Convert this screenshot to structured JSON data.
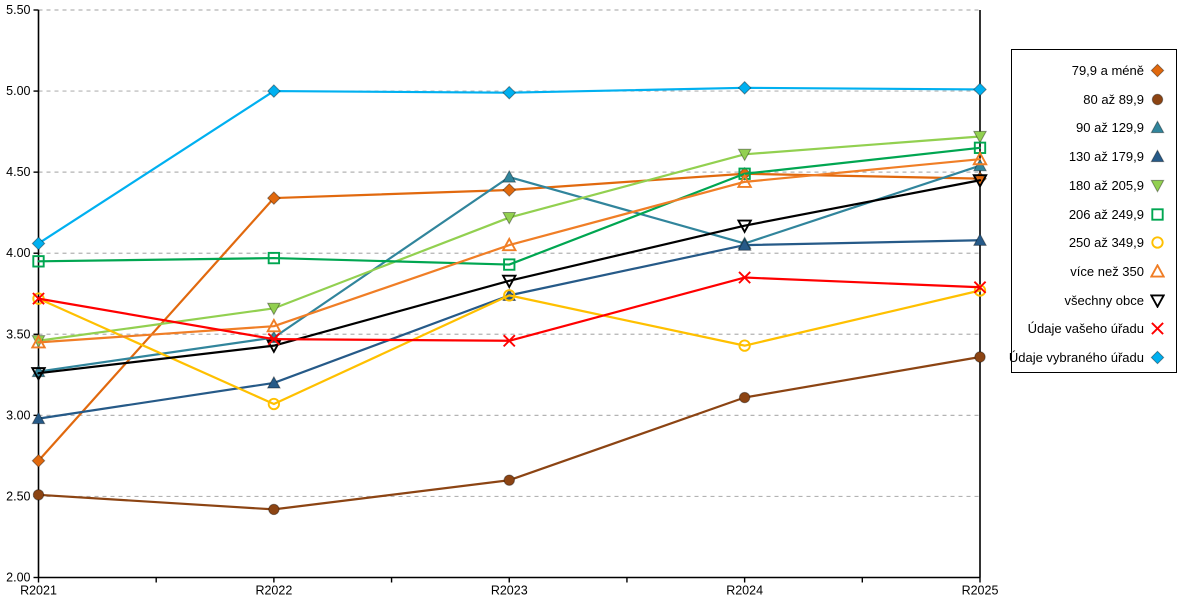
{
  "page": {
    "background": "#FFFFFF",
    "grid_color": "#B3B3B3",
    "axis_color": "#000000"
  },
  "chart_data": {
    "type": "line",
    "title": "",
    "xlabel": "",
    "ylabel": "",
    "categories": [
      "R2021",
      "R2022",
      "R2023",
      "R2024",
      "R2025"
    ],
    "ylim": [
      2.0,
      5.5
    ],
    "ytick_step": 0.5,
    "ytick_labels": [
      "2.00",
      "2.50",
      "3.00",
      "3.50",
      "4.00",
      "4.50",
      "5.00",
      "5.50"
    ],
    "grid": "horizontal-dashed",
    "x_minor_ticks_between_labels": true,
    "legend_position": "right",
    "series": [
      {
        "name": "79,9 a méně",
        "marker": "diamond",
        "filled": true,
        "color": "#E1690E",
        "values": [
          2.72,
          4.34,
          4.39,
          4.49,
          4.46
        ]
      },
      {
        "name": "80 až 89,9",
        "marker": "circle",
        "filled": true,
        "color": "#8C4413",
        "values": [
          2.51,
          2.42,
          2.6,
          3.11,
          3.36
        ]
      },
      {
        "name": "90 až 129,9",
        "marker": "triangle-up",
        "filled": true,
        "color": "#31859C",
        "values": [
          3.27,
          3.48,
          4.47,
          4.06,
          4.54
        ]
      },
      {
        "name": "130 až 179,9",
        "marker": "triangle-up",
        "filled": true,
        "color": "#265A88",
        "values": [
          2.98,
          3.2,
          3.74,
          4.05,
          4.08
        ]
      },
      {
        "name": "180 až 205,9",
        "marker": "triangle-down",
        "filled": true,
        "color": "#92D050",
        "values": [
          3.46,
          3.66,
          4.22,
          4.61,
          4.72
        ]
      },
      {
        "name": "206 až 249,9",
        "marker": "square",
        "filled": false,
        "color": "#00A651",
        "values": [
          3.95,
          3.97,
          3.93,
          4.49,
          4.65
        ]
      },
      {
        "name": "250 až 349,9",
        "marker": "circle",
        "filled": false,
        "color": "#FFC000",
        "values": [
          3.72,
          3.07,
          3.74,
          3.43,
          3.77
        ]
      },
      {
        "name": "více než 350",
        "marker": "triangle-up",
        "filled": false,
        "color": "#F07E26",
        "values": [
          3.45,
          3.55,
          4.05,
          4.44,
          4.58
        ]
      },
      {
        "name": "všechny obce",
        "marker": "triangle-down",
        "filled": false,
        "color": "#000000",
        "values": [
          3.26,
          3.43,
          3.83,
          4.17,
          4.45
        ]
      },
      {
        "name": "Údaje vašeho úřadu",
        "marker": "x",
        "filled": false,
        "color": "#FF0000",
        "values": [
          3.72,
          3.47,
          3.46,
          3.85,
          3.79
        ]
      },
      {
        "name": "Údaje vybraného úřadu",
        "marker": "diamond",
        "filled": true,
        "color": "#00B0F0",
        "values": [
          4.06,
          5.0,
          4.99,
          5.02,
          5.01
        ]
      }
    ]
  }
}
